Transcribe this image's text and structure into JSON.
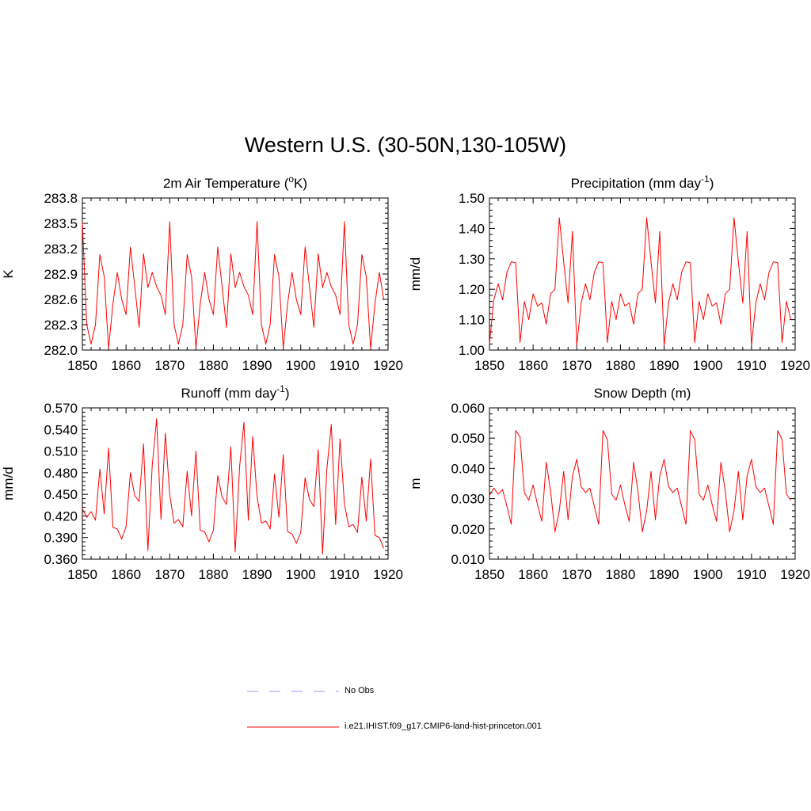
{
  "title": "Western U.S. (30-50N,130-105W)",
  "colors": {
    "model": "#ff0000",
    "obs": "#9999ff",
    "axis": "#000000"
  },
  "legend": {
    "obs_label": "No Obs",
    "model_label": "i.e21.IHIST.f09_g17.CMIP6-land-hist-princeton.001"
  },
  "chart_data": [
    {
      "type": "line",
      "title": "2m Air Temperature (",
      "title_sup": "o",
      "title_suffix": "K)",
      "ylabel": "K",
      "xlim": [
        1850,
        1920
      ],
      "ylim": [
        282.0,
        283.8
      ],
      "xticks": [
        "1850",
        "1860",
        "1870",
        "1880",
        "1890",
        "1900",
        "1910",
        "1920"
      ],
      "yticks": [
        "282.0",
        "282.3",
        "282.6",
        "282.9",
        "283.2",
        "283.5",
        "283.8"
      ],
      "series": [
        {
          "x_start": 1850,
          "values": [
            283.52,
            282.3,
            282.07,
            282.3,
            283.13,
            282.87,
            282.02,
            282.55,
            282.92,
            282.6,
            282.42,
            283.22,
            282.75,
            282.27,
            283.14,
            282.74,
            282.92,
            282.75,
            282.65,
            282.42,
            283.52,
            282.3,
            282.07,
            282.3,
            283.13,
            282.87,
            282.02,
            282.55,
            282.92,
            282.6,
            282.42,
            283.22,
            282.75,
            282.27,
            283.14,
            282.74,
            282.92,
            282.75,
            282.65,
            282.42,
            283.52,
            282.3,
            282.07,
            282.3,
            283.13,
            282.87,
            282.02,
            282.55,
            282.92,
            282.6,
            282.42,
            283.22,
            282.75,
            282.27,
            283.14,
            282.74,
            282.92,
            282.75,
            282.65,
            282.42,
            283.52,
            282.3,
            282.07,
            282.3,
            283.13,
            282.87,
            282.02,
            282.55,
            282.92,
            282.6
          ]
        }
      ]
    },
    {
      "type": "line",
      "title": "Precipitation (mm day",
      "title_sup": "-1",
      "title_suffix": ")",
      "ylabel": "mm/d",
      "xlim": [
        1850,
        1920
      ],
      "ylim": [
        1.0,
        1.5
      ],
      "xticks": [
        "1850",
        "1860",
        "1870",
        "1880",
        "1890",
        "1900",
        "1910",
        "1920"
      ],
      "yticks": [
        "1.00",
        "1.10",
        "1.20",
        "1.30",
        "1.40",
        "1.50"
      ],
      "series": [
        {
          "x_start": 1850,
          "values": [
            1.02,
            1.165,
            1.218,
            1.165,
            1.255,
            1.29,
            1.287,
            1.025,
            1.16,
            1.1,
            1.185,
            1.145,
            1.155,
            1.085,
            1.185,
            1.2,
            1.435,
            1.29,
            1.155,
            1.39,
            1.015,
            1.155,
            1.218,
            1.165,
            1.255,
            1.29,
            1.287,
            1.025,
            1.16,
            1.1,
            1.185,
            1.145,
            1.155,
            1.085,
            1.185,
            1.2,
            1.435,
            1.29,
            1.155,
            1.39,
            1.015,
            1.155,
            1.218,
            1.165,
            1.255,
            1.29,
            1.287,
            1.025,
            1.16,
            1.1,
            1.185,
            1.145,
            1.155,
            1.085,
            1.185,
            1.2,
            1.435,
            1.29,
            1.155,
            1.39,
            1.015,
            1.155,
            1.218,
            1.165,
            1.255,
            1.29,
            1.287,
            1.025,
            1.16,
            1.1
          ]
        }
      ]
    },
    {
      "type": "line",
      "title": "Runoff (mm day",
      "title_sup": "-1",
      "title_suffix": ")",
      "ylabel": "mm/d",
      "xlim": [
        1850,
        1920
      ],
      "ylim": [
        0.36,
        0.57
      ],
      "xticks": [
        "1850",
        "1860",
        "1870",
        "1880",
        "1890",
        "1900",
        "1910",
        "1920"
      ],
      "yticks": [
        "0.360",
        "0.390",
        "0.420",
        "0.450",
        "0.480",
        "0.510",
        "0.540",
        "0.570"
      ],
      "series": [
        {
          "x_start": 1850,
          "values": [
            0.43,
            0.418,
            0.426,
            0.414,
            0.485,
            0.423,
            0.514,
            0.404,
            0.402,
            0.388,
            0.405,
            0.48,
            0.448,
            0.44,
            0.52,
            0.372,
            0.49,
            0.555,
            0.415,
            0.535,
            0.45,
            0.41,
            0.415,
            0.405,
            0.482,
            0.42,
            0.51,
            0.4,
            0.398,
            0.384,
            0.4,
            0.476,
            0.446,
            0.436,
            0.516,
            0.37,
            0.488,
            0.55,
            0.414,
            0.53,
            0.447,
            0.41,
            0.413,
            0.402,
            0.478,
            0.418,
            0.505,
            0.398,
            0.395,
            0.382,
            0.397,
            0.473,
            0.443,
            0.433,
            0.512,
            0.367,
            0.486,
            0.547,
            0.408,
            0.527,
            0.437,
            0.405,
            0.408,
            0.397,
            0.474,
            0.413,
            0.499,
            0.393,
            0.39,
            0.375
          ]
        }
      ]
    },
    {
      "type": "line",
      "title": "Snow Depth (m)",
      "title_sup": "",
      "title_suffix": "",
      "ylabel": "m",
      "xlim": [
        1850,
        1920
      ],
      "ylim": [
        0.01,
        0.06
      ],
      "xticks": [
        "1850",
        "1860",
        "1870",
        "1880",
        "1890",
        "1900",
        "1910",
        "1920"
      ],
      "yticks": [
        "0.010",
        "0.020",
        "0.030",
        "0.040",
        "0.050",
        "0.060"
      ],
      "series": [
        {
          "x_start": 1850,
          "values": [
            0.031,
            0.0335,
            0.0315,
            0.033,
            0.0275,
            0.0215,
            0.0525,
            0.0505,
            0.032,
            0.0295,
            0.0345,
            0.028,
            0.0225,
            0.042,
            0.0325,
            0.019,
            0.026,
            0.039,
            0.023,
            0.0375,
            0.043,
            0.034,
            0.032,
            0.0335,
            0.0275,
            0.0215,
            0.0525,
            0.0495,
            0.0315,
            0.0295,
            0.0345,
            0.028,
            0.0225,
            0.042,
            0.0325,
            0.019,
            0.026,
            0.039,
            0.023,
            0.0375,
            0.043,
            0.034,
            0.032,
            0.0335,
            0.0275,
            0.0215,
            0.0525,
            0.0495,
            0.0315,
            0.0295,
            0.0345,
            0.028,
            0.0225,
            0.042,
            0.0325,
            0.019,
            0.026,
            0.039,
            0.023,
            0.0375,
            0.043,
            0.034,
            0.032,
            0.0335,
            0.0275,
            0.0215,
            0.0525,
            0.0495,
            0.0315,
            0.0295
          ]
        }
      ]
    }
  ]
}
